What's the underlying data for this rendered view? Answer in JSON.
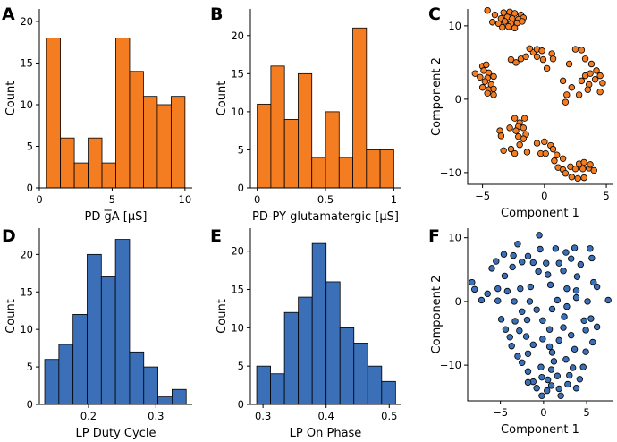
{
  "colors": {
    "orange": "#f47d22",
    "blue": "#3b70b9"
  },
  "chart_data": [
    {
      "panel": "A",
      "type": "bar",
      "color": "#f47d22",
      "xlabel": "PD gA [µS]",
      "xlabel_overbar": "g",
      "ylabel": "Count",
      "edges": [
        0.5,
        1.45,
        2.4,
        3.35,
        4.3,
        5.25,
        6.2,
        7.15,
        8.1,
        9.05,
        10.0
      ],
      "values": [
        18,
        6,
        3,
        6,
        3,
        18,
        14,
        11,
        10,
        11
      ],
      "xlim": [
        0,
        10.5
      ],
      "ylim": [
        0,
        21.5
      ],
      "xticks": [
        0,
        5,
        10
      ],
      "xtick_labels": [
        "0",
        "5",
        "10"
      ],
      "yticks": [
        0,
        5,
        10,
        15,
        20
      ],
      "ytick_labels": [
        "0",
        "5",
        "10",
        "15",
        "20"
      ]
    },
    {
      "panel": "B",
      "type": "bar",
      "color": "#f47d22",
      "xlabel": "PD-PY glutamatergic [µS]",
      "ylabel": "Count",
      "edges": [
        0.0,
        0.1,
        0.2,
        0.3,
        0.4,
        0.5,
        0.6,
        0.7,
        0.8,
        0.9,
        1.0
      ],
      "values": [
        11,
        16,
        9,
        15,
        4,
        10,
        4,
        21,
        5,
        5
      ],
      "xlim": [
        -0.05,
        1.05
      ],
      "ylim": [
        0,
        23.5
      ],
      "xticks": [
        0,
        0.5,
        1
      ],
      "xtick_labels": [
        "0",
        "0.5",
        "1"
      ],
      "yticks": [
        0,
        5,
        10,
        15,
        20
      ],
      "ytick_labels": [
        "0",
        "5",
        "10",
        "15",
        "20"
      ]
    },
    {
      "panel": "C",
      "type": "scatter",
      "color": "#f47d22",
      "xlabel": "Component 1",
      "ylabel": "Component 2",
      "xlim": [
        -6.2,
        5.5
      ],
      "ylim": [
        -11.6,
        12.3
      ],
      "xticks": [
        -5,
        0,
        5
      ],
      "xtick_labels": [
        "−5",
        "0",
        "5"
      ],
      "yticks": [
        -10,
        0,
        10
      ],
      "ytick_labels": [
        "−10",
        "0",
        "10"
      ],
      "points": [
        [
          -4.6,
          12.1
        ],
        [
          -4.0,
          11.5
        ],
        [
          -3.3,
          11.8
        ],
        [
          -2.8,
          11.9
        ],
        [
          -2.4,
          11.7
        ],
        [
          -1.9,
          11.5
        ],
        [
          -3.5,
          11.0
        ],
        [
          -3.0,
          11.2
        ],
        [
          -2.6,
          11.0
        ],
        [
          -2.1,
          10.9
        ],
        [
          -1.7,
          11.1
        ],
        [
          -4.2,
          10.5
        ],
        [
          -3.7,
          10.3
        ],
        [
          -3.2,
          10.6
        ],
        [
          -2.7,
          10.3
        ],
        [
          -2.2,
          10.4
        ],
        [
          -1.8,
          10.6
        ],
        [
          -3.4,
          9.8
        ],
        [
          -2.9,
          9.9
        ],
        [
          -2.4,
          9.7
        ],
        [
          -5.6,
          3.5
        ],
        [
          -5.0,
          4.5
        ],
        [
          -4.7,
          4.7
        ],
        [
          -4.9,
          3.9
        ],
        [
          -4.5,
          3.6
        ],
        [
          -5.2,
          3.0
        ],
        [
          -4.6,
          2.9
        ],
        [
          -4.1,
          3.1
        ],
        [
          -4.8,
          2.4
        ],
        [
          -4.3,
          2.0
        ],
        [
          -5.0,
          1.6
        ],
        [
          -4.5,
          1.3
        ],
        [
          -4.1,
          1.4
        ],
        [
          -4.6,
          0.8
        ],
        [
          -4.1,
          0.6
        ],
        [
          -2.7,
          5.4
        ],
        [
          -2.3,
          5.0
        ],
        [
          -1.9,
          5.5
        ],
        [
          -1.5,
          5.8
        ],
        [
          -0.9,
          6.4
        ],
        [
          -0.6,
          6.8
        ],
        [
          -1.2,
          6.9
        ],
        [
          -0.2,
          6.6
        ],
        [
          -0.6,
          5.8
        ],
        [
          -0.1,
          5.4
        ],
        [
          0.6,
          6.2
        ],
        [
          0.7,
          5.5
        ],
        [
          0.2,
          4.2
        ],
        [
          2.0,
          4.8
        ],
        [
          2.5,
          6.8
        ],
        [
          3.0,
          6.7
        ],
        [
          3.3,
          5.5
        ],
        [
          3.8,
          4.8
        ],
        [
          3.7,
          3.5
        ],
        [
          4.2,
          3.9
        ],
        [
          4.5,
          3.2
        ],
        [
          3.3,
          3.2
        ],
        [
          3.0,
          2.5
        ],
        [
          3.6,
          2.0
        ],
        [
          4.1,
          2.7
        ],
        [
          4.7,
          2.2
        ],
        [
          3.5,
          1.3
        ],
        [
          4.5,
          1.0
        ],
        [
          2.8,
          0.6
        ],
        [
          2.2,
          1.6
        ],
        [
          1.8,
          0.6
        ],
        [
          1.7,
          -0.4
        ],
        [
          1.5,
          2.5
        ],
        [
          -2.4,
          -2.6
        ],
        [
          -2.0,
          -3.2
        ],
        [
          -1.6,
          -2.6
        ],
        [
          -2.1,
          -3.7
        ],
        [
          -1.7,
          -3.9
        ],
        [
          -2.8,
          -3.9
        ],
        [
          -2.3,
          -4.3
        ],
        [
          -1.5,
          -4.8
        ],
        [
          -1.7,
          -5.4
        ],
        [
          -2.1,
          -5.1
        ],
        [
          -3.6,
          -4.3
        ],
        [
          -3.5,
          -5.0
        ],
        [
          -2.7,
          -6.8
        ],
        [
          -3.3,
          -7.0
        ],
        [
          -2.4,
          -7.4
        ],
        [
          -2.0,
          -6.2
        ],
        [
          -1.4,
          -7.2
        ],
        [
          -0.6,
          -6.0
        ],
        [
          0.0,
          -5.8
        ],
        [
          0.5,
          -6.3
        ],
        [
          -0.3,
          -7.4
        ],
        [
          0.1,
          -7.4
        ],
        [
          0.7,
          -6.8
        ],
        [
          1.0,
          -7.6
        ],
        [
          0.8,
          -8.4
        ],
        [
          1.5,
          -8.1
        ],
        [
          1.1,
          -9.3
        ],
        [
          1.5,
          -9.6
        ],
        [
          1.7,
          -10.1
        ],
        [
          2.1,
          -9.2
        ],
        [
          2.2,
          -10.6
        ],
        [
          2.7,
          -10.8
        ],
        [
          3.2,
          -10.7
        ],
        [
          2.5,
          -9.5
        ],
        [
          2.8,
          -8.8
        ],
        [
          3.1,
          -9.5
        ],
        [
          3.6,
          -9.4
        ],
        [
          3.2,
          -8.6
        ],
        [
          3.7,
          -8.9
        ],
        [
          4.0,
          -9.7
        ]
      ]
    },
    {
      "panel": "D",
      "type": "bar",
      "color": "#3b70b9",
      "xlabel": "LP Duty Cycle",
      "ylabel": "Count",
      "edges": [
        0.135,
        0.156,
        0.177,
        0.198,
        0.219,
        0.24,
        0.261,
        0.282,
        0.303,
        0.324,
        0.345
      ],
      "values": [
        6,
        8,
        12,
        20,
        17,
        22,
        7,
        5,
        1,
        2
      ],
      "xlim": [
        0.127,
        0.354
      ],
      "ylim": [
        0,
        23.5
      ],
      "xticks": [
        0.2,
        0.3
      ],
      "xtick_labels": [
        "0.2",
        "0.3"
      ],
      "yticks": [
        0,
        5,
        10,
        15,
        20
      ],
      "ytick_labels": [
        "0",
        "5",
        "10",
        "15",
        "20"
      ]
    },
    {
      "panel": "E",
      "type": "bar",
      "color": "#3b70b9",
      "xlabel": "LP On Phase",
      "ylabel": "Count",
      "edges": [
        0.29,
        0.312,
        0.334,
        0.356,
        0.378,
        0.4,
        0.422,
        0.444,
        0.466,
        0.488,
        0.51
      ],
      "values": [
        5,
        4,
        12,
        14,
        21,
        16,
        10,
        8,
        5,
        3
      ],
      "xlim": [
        0.28,
        0.518
      ],
      "ylim": [
        0,
        23.0
      ],
      "xticks": [
        0.3,
        0.4,
        0.5
      ],
      "xtick_labels": [
        "0.3",
        "0.4",
        "0.5"
      ],
      "yticks": [
        0,
        5,
        10,
        15,
        20
      ],
      "ytick_labels": [
        "0",
        "5",
        "10",
        "15",
        "20"
      ]
    },
    {
      "panel": "F",
      "type": "scatter",
      "color": "#3b70b9",
      "xlabel": "Component 1",
      "ylabel": "Component 2",
      "xlim": [
        -8.8,
        8.0
      ],
      "ylim": [
        -15.6,
        11.5
      ],
      "xticks": [
        -5,
        0,
        5
      ],
      "xtick_labels": [
        "−5",
        "0",
        "5"
      ],
      "yticks": [
        -10,
        0,
        10
      ],
      "ytick_labels": [
        "−10",
        "0",
        "10"
      ],
      "points": [
        [
          -0.5,
          10.4
        ],
        [
          -3.0,
          9.0
        ],
        [
          -4.6,
          7.4
        ],
        [
          -3.5,
          7.2
        ],
        [
          -1.8,
          7.1
        ],
        [
          -0.4,
          8.2
        ],
        [
          1.4,
          8.3
        ],
        [
          2.6,
          7.7
        ],
        [
          3.2,
          6.7
        ],
        [
          3.6,
          8.4
        ],
        [
          5.4,
          8.3
        ],
        [
          5.6,
          6.8
        ],
        [
          -5.5,
          6.3
        ],
        [
          -2.5,
          6.2
        ],
        [
          -1.2,
          6.1
        ],
        [
          0.3,
          6.0
        ],
        [
          1.8,
          6.0
        ],
        [
          4.3,
          5.8
        ],
        [
          -6.0,
          5.2
        ],
        [
          -4.5,
          4.0
        ],
        [
          -3.6,
          5.4
        ],
        [
          -0.6,
          4.7
        ],
        [
          0.5,
          4.2
        ],
        [
          2.3,
          4.8
        ],
        [
          3.9,
          3.9
        ],
        [
          5.8,
          3.0
        ],
        [
          -8.3,
          3.0
        ],
        [
          -8.0,
          1.9
        ],
        [
          -6.5,
          1.2
        ],
        [
          -5.3,
          2.0
        ],
        [
          -4.2,
          1.6
        ],
        [
          -2.7,
          2.0
        ],
        [
          -1.5,
          2.3
        ],
        [
          0.8,
          2.6
        ],
        [
          2.7,
          2.0
        ],
        [
          3.8,
          1.7
        ],
        [
          6.2,
          2.3
        ],
        [
          -7.2,
          0.2
        ],
        [
          -5.3,
          0.1
        ],
        [
          -3.4,
          0.0
        ],
        [
          -1.6,
          0.0
        ],
        [
          1.6,
          0.2
        ],
        [
          3.8,
          0.6
        ],
        [
          5.1,
          0.0
        ],
        [
          7.5,
          0.2
        ],
        [
          -2.5,
          -1.6
        ],
        [
          -0.8,
          -1.3
        ],
        [
          1.0,
          -1.2
        ],
        [
          2.7,
          -0.8
        ],
        [
          -4.9,
          -2.8
        ],
        [
          -3.3,
          -3.1
        ],
        [
          -1.9,
          -2.9
        ],
        [
          -0.1,
          -3.0
        ],
        [
          2.4,
          -2.4
        ],
        [
          4.7,
          -3.0
        ],
        [
          5.5,
          -2.7
        ],
        [
          -4.4,
          -4.4
        ],
        [
          -2.8,
          -4.6
        ],
        [
          0.7,
          -4.4
        ],
        [
          2.3,
          -4.1
        ],
        [
          3.2,
          -5.3
        ],
        [
          4.9,
          -4.5
        ],
        [
          6.2,
          -4.0
        ],
        [
          -3.9,
          -5.6
        ],
        [
          -2.0,
          -5.5
        ],
        [
          -0.1,
          -5.9
        ],
        [
          1.8,
          -6.1
        ],
        [
          5.7,
          -6.4
        ],
        [
          -3.7,
          -7.0
        ],
        [
          -1.2,
          -6.8
        ],
        [
          0.7,
          -7.1
        ],
        [
          3.6,
          -7.5
        ],
        [
          -3.0,
          -8.6
        ],
        [
          -1.8,
          -8.2
        ],
        [
          1.0,
          -8.0
        ],
        [
          4.9,
          -7.9
        ],
        [
          -2.5,
          -9.6
        ],
        [
          1.2,
          -9.4
        ],
        [
          2.6,
          -9.1
        ],
        [
          -0.3,
          -10.3
        ],
        [
          0.9,
          -10.7
        ],
        [
          3.4,
          -10.4
        ],
        [
          4.6,
          -10.3
        ],
        [
          -1.8,
          -11.0
        ],
        [
          -0.2,
          -11.9
        ],
        [
          1.6,
          -11.7
        ],
        [
          -1.2,
          -12.6
        ],
        [
          0.5,
          -12.3
        ],
        [
          3.0,
          -11.6
        ],
        [
          4.2,
          -12.2
        ],
        [
          -0.8,
          -13.6
        ],
        [
          0.4,
          -14.0
        ],
        [
          1.8,
          -13.7
        ],
        [
          2.8,
          -13.0
        ],
        [
          -0.2,
          -14.8
        ],
        [
          2.0,
          -14.8
        ],
        [
          3.8,
          -13.6
        ],
        [
          0.9,
          -13.2
        ],
        [
          -1.8,
          -12.7
        ]
      ]
    }
  ]
}
